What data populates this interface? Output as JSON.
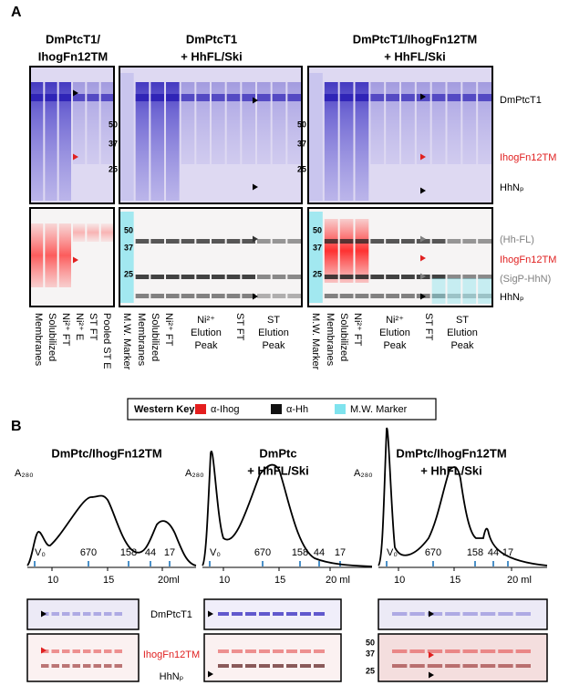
{
  "panel_a": {
    "label": "A",
    "column_titles": [
      [
        "DmPtcT1/",
        "IhogFn12TM"
      ],
      [
        "DmPtcT1",
        "+ HhFL/Ski"
      ],
      [
        "DmPtcT1/IhogFn12TM",
        "+ HhFL/Ski"
      ]
    ],
    "mw_markers": [
      "50",
      "37",
      "25"
    ],
    "coomassie_labels": [
      "DmPtcT1",
      "IhogFn12TM",
      "HhNₚ"
    ],
    "western_labels": [
      "(Hh-FL)",
      "IhogFn12TM",
      "(SigP-HhN)",
      "HhNₚ"
    ],
    "lane_labels": [
      [
        "Membranes",
        "Solubilized",
        "Ni²⁺ FT",
        "Ni²⁺ E",
        "ST FT",
        "Pooled ST E"
      ],
      [
        "M.W. Marker",
        "Membranes",
        "Solubilized",
        "Ni²⁺ FT",
        "ST FT"
      ],
      [
        "M.W. Marker",
        "Membranes",
        "Solubilized",
        "Ni²⁺ FT",
        "ST FT"
      ]
    ],
    "peak_labels": [
      [
        [
          "Ni²⁺",
          "Elution",
          "Peak"
        ],
        [
          "ST",
          "Elution",
          "Peak"
        ]
      ],
      [
        [
          "Ni²⁺",
          "Elution",
          "Peak"
        ],
        [
          "ST",
          "Elution",
          "Peak"
        ]
      ]
    ],
    "western_key": {
      "title": "Western Key:",
      "items": [
        "α-Ihog",
        "α-Hh",
        "M.W. Marker"
      ]
    }
  },
  "panel_b": {
    "label": "B",
    "chromatograms": [
      {
        "title": [
          "DmPtc/IhogFn12TM"
        ],
        "y_label": "A₂₈₀",
        "x_ticks": [
          "10",
          "15",
          "20ml"
        ],
        "standards": [
          "V₀",
          "670",
          "158",
          "44",
          "17"
        ]
      },
      {
        "title": [
          "DmPtc",
          "+ HhFL/Ski"
        ],
        "y_label": "A₂₈₀",
        "x_ticks": [
          "10",
          "15",
          "20 ml"
        ],
        "standards": [
          "V₀",
          "670",
          "158",
          "44",
          "17"
        ]
      },
      {
        "title": [
          "DmPtc/IhogFn12TM",
          "+ HhFL/Ski"
        ],
        "y_label": "A₂₈₀",
        "x_ticks": [
          "10",
          "15",
          "20 ml"
        ],
        "standards": [
          "V₀",
          "670",
          "158",
          "44",
          "17"
        ]
      }
    ],
    "gel_labels": [
      "DmPtcT1",
      "IhogFn12TM",
      "HhNₚ"
    ],
    "mw_markers": [
      "50",
      "37",
      "25"
    ]
  }
}
